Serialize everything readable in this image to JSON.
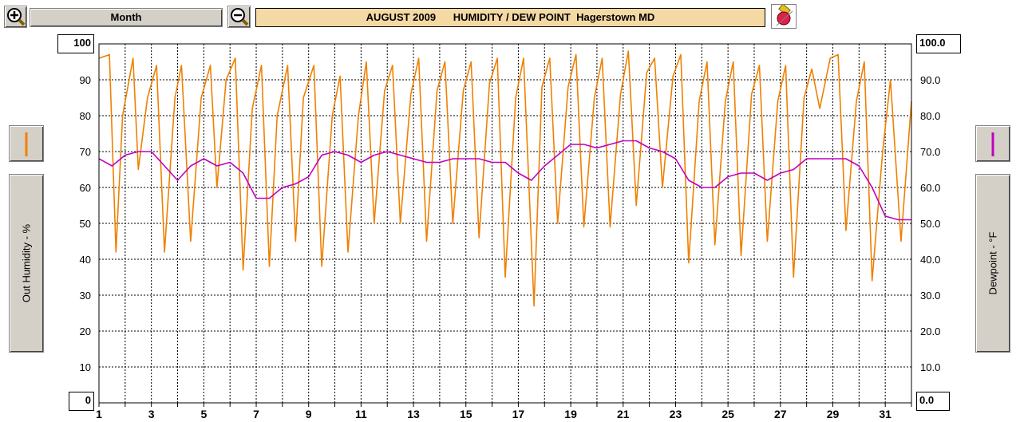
{
  "toolbar": {
    "zoom_in_icon": "zoom-in-icon",
    "zoom_out_icon": "zoom-out-icon",
    "period_label": "Month",
    "title": "AUGUST 2009      HUMIDITY / DEW POINT  Hagerstown MD",
    "tool_icon": "eraser-icon"
  },
  "side": {
    "left_label": "Out Humidity - %",
    "right_label": "Dewpoint - °F"
  },
  "colors": {
    "humidity": "#f08000",
    "dewpoint": "#c000c0",
    "grid": "#000000",
    "title_bg": "#f5d9a5"
  },
  "chart_data": {
    "type": "line",
    "title": "AUGUST 2009 HUMIDITY / DEW POINT Hagerstown MD",
    "ylabel": "Out Humidity - %",
    "y2label": "Dewpoint - °F",
    "ylim": [
      0,
      100
    ],
    "y2lim": [
      0.0,
      100.0
    ],
    "xlim": [
      1,
      32
    ],
    "grid": true,
    "left_min_label": "0",
    "left_max_label": "100",
    "right_min_label": "0.0",
    "right_max_label": "100.0",
    "left_ticks": [
      "10",
      "20",
      "30",
      "40",
      "50",
      "60",
      "70",
      "80",
      "90"
    ],
    "right_ticks": [
      "10.0",
      "20.0",
      "30.0",
      "40.0",
      "50.0",
      "60.0",
      "70.0",
      "80.0",
      "90.0"
    ],
    "x_tick_labels": [
      "1",
      "3",
      "5",
      "7",
      "9",
      "11",
      "13",
      "15",
      "17",
      "19",
      "21",
      "23",
      "25",
      "27",
      "29",
      "31"
    ],
    "x_tick_values": [
      1,
      3,
      5,
      7,
      9,
      11,
      13,
      15,
      17,
      19,
      21,
      23,
      25,
      27,
      29,
      31
    ],
    "series": [
      {
        "key": "humidity",
        "color": "#f08000",
        "x": [
          1.0,
          1.4,
          1.65,
          1.9,
          2.3,
          2.5,
          2.85,
          3.2,
          3.5,
          3.9,
          4.15,
          4.5,
          4.9,
          5.25,
          5.5,
          5.85,
          6.2,
          6.5,
          6.85,
          7.2,
          7.5,
          7.8,
          8.2,
          8.5,
          8.8,
          9.2,
          9.5,
          9.9,
          10.2,
          10.5,
          10.9,
          11.2,
          11.5,
          11.9,
          12.2,
          12.5,
          12.9,
          13.2,
          13.5,
          13.9,
          14.2,
          14.5,
          14.9,
          15.2,
          15.5,
          15.9,
          16.2,
          16.5,
          16.9,
          17.2,
          17.6,
          17.9,
          18.2,
          18.5,
          18.9,
          19.2,
          19.5,
          19.9,
          20.2,
          20.5,
          20.9,
          21.2,
          21.5,
          21.9,
          22.2,
          22.5,
          22.9,
          23.2,
          23.5,
          23.9,
          24.2,
          24.5,
          24.9,
          25.2,
          25.5,
          25.9,
          26.2,
          26.5,
          26.9,
          27.2,
          27.5,
          27.9,
          28.2,
          28.5,
          28.9,
          29.2,
          29.5,
          29.9,
          30.2,
          30.5,
          30.9,
          31.2,
          31.6,
          32.0
        ],
        "y": [
          96,
          97,
          42,
          80,
          96,
          65,
          85,
          94,
          42,
          85,
          94,
          45,
          85,
          94,
          60,
          90,
          96,
          37,
          82,
          94,
          38,
          80,
          94,
          45,
          85,
          94,
          38,
          80,
          91,
          42,
          80,
          95,
          50,
          87,
          94,
          50,
          86,
          96,
          45,
          87,
          95,
          50,
          87,
          95,
          46,
          89,
          96,
          35,
          85,
          96,
          27,
          88,
          96,
          50,
          88,
          97,
          49,
          85,
          96,
          49,
          86,
          98,
          55,
          92,
          96,
          60,
          91,
          97,
          39,
          84,
          95,
          44,
          84,
          95,
          41,
          86,
          94,
          45,
          84,
          94,
          35,
          85,
          93,
          82,
          96,
          97,
          48,
          84,
          95,
          34,
          70,
          90,
          45,
          84
        ]
      },
      {
        "key": "dewpoint",
        "color": "#c000c0",
        "x": [
          1.0,
          1.5,
          2.0,
          2.5,
          3.0,
          3.5,
          4.0,
          4.5,
          5.0,
          5.5,
          6.0,
          6.5,
          7.0,
          7.5,
          8.0,
          8.5,
          9.0,
          9.5,
          10.0,
          10.5,
          11.0,
          11.5,
          12.0,
          12.5,
          13.0,
          13.5,
          14.0,
          14.5,
          15.0,
          15.5,
          16.0,
          16.5,
          17.0,
          17.5,
          18.0,
          18.5,
          19.0,
          19.5,
          20.0,
          20.5,
          21.0,
          21.5,
          22.0,
          22.5,
          23.0,
          23.5,
          24.0,
          24.5,
          25.0,
          25.5,
          26.0,
          26.5,
          27.0,
          27.5,
          28.0,
          28.5,
          29.0,
          29.5,
          30.0,
          30.5,
          31.0,
          31.5,
          32.0
        ],
        "y": [
          68,
          66,
          69,
          70,
          70,
          66,
          62,
          66,
          68,
          66,
          67,
          64,
          57,
          57,
          60,
          61,
          63,
          69,
          70,
          69,
          67,
          69,
          70,
          69,
          68,
          67,
          67,
          68,
          68,
          68,
          67,
          67,
          64,
          62,
          66,
          69,
          72,
          72,
          71,
          72,
          73,
          73,
          71,
          70,
          68,
          62,
          60,
          60,
          63,
          64,
          64,
          62,
          64,
          65,
          68,
          68,
          68,
          68,
          66,
          60,
          52,
          51,
          51
        ]
      }
    ]
  }
}
